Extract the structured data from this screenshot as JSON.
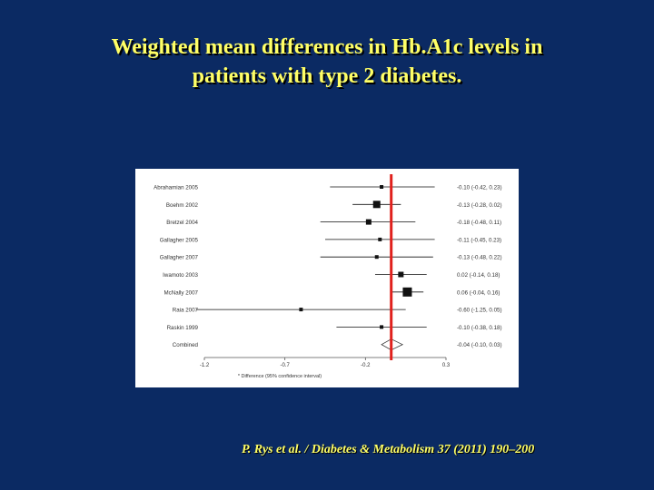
{
  "slide": {
    "title_line1": "Weighted mean differences in Hb.A1c levels in",
    "title_line2": "patients with type 2 diabetes.",
    "citation": "P. Rys et al. / Diabetes & Metabolism 37 (2011) 190–200"
  },
  "chart_data": {
    "type": "forest",
    "xlabel": "* Difference (95% confidence interval)",
    "xlim": [
      -1.2,
      0.3
    ],
    "xticks": [
      "-1.2",
      "-0.7",
      "-0.2",
      "0.3"
    ],
    "reference_line_x": -0.04,
    "reference_line_color": "#e0201c",
    "studies": [
      {
        "label": "Abrahamian 2005",
        "estimate": -0.1,
        "ci": [
          -0.42,
          0.23
        ],
        "text": "-0.10 (-0.42, 0.23)",
        "weight": 1
      },
      {
        "label": "Boehm 2002",
        "estimate": -0.13,
        "ci": [
          -0.28,
          0.02
        ],
        "text": "-0.13 (-0.28, 0.02)",
        "weight": 3
      },
      {
        "label": "Bretzel 2004",
        "estimate": -0.18,
        "ci": [
          -0.48,
          0.11
        ],
        "text": "-0.18 (-0.48, 0.11)",
        "weight": 2
      },
      {
        "label": "Gallagher 2005",
        "estimate": -0.11,
        "ci": [
          -0.45,
          0.23
        ],
        "text": "-0.11 (-0.45, 0.23)",
        "weight": 1
      },
      {
        "label": "Gallagher 2007",
        "estimate": -0.13,
        "ci": [
          -0.48,
          0.22
        ],
        "text": "-0.13 (-0.48, 0.22)",
        "weight": 1
      },
      {
        "label": "Iwamoto 2003",
        "estimate": 0.02,
        "ci": [
          -0.14,
          0.18
        ],
        "text": "0.02 (-0.14, 0.18)",
        "weight": 2
      },
      {
        "label": "McNally 2007",
        "estimate": 0.06,
        "ci": [
          -0.04,
          0.16
        ],
        "text": "0.06 (-0.04, 0.16)",
        "weight": 4
      },
      {
        "label": "Raia 2007",
        "estimate": -0.6,
        "ci": [
          -1.25,
          0.05
        ],
        "text": "-0.60 (-1.25, 0.05)",
        "weight": 1
      },
      {
        "label": "Raskin 1999",
        "estimate": -0.1,
        "ci": [
          -0.38,
          0.18
        ],
        "text": "-0.10 (-0.38, 0.18)",
        "weight": 1
      },
      {
        "label": "Combined",
        "estimate": -0.04,
        "ci": [
          -0.1,
          0.03
        ],
        "text": "-0.04 (-0.10, 0.03)",
        "pooled": true
      }
    ]
  }
}
